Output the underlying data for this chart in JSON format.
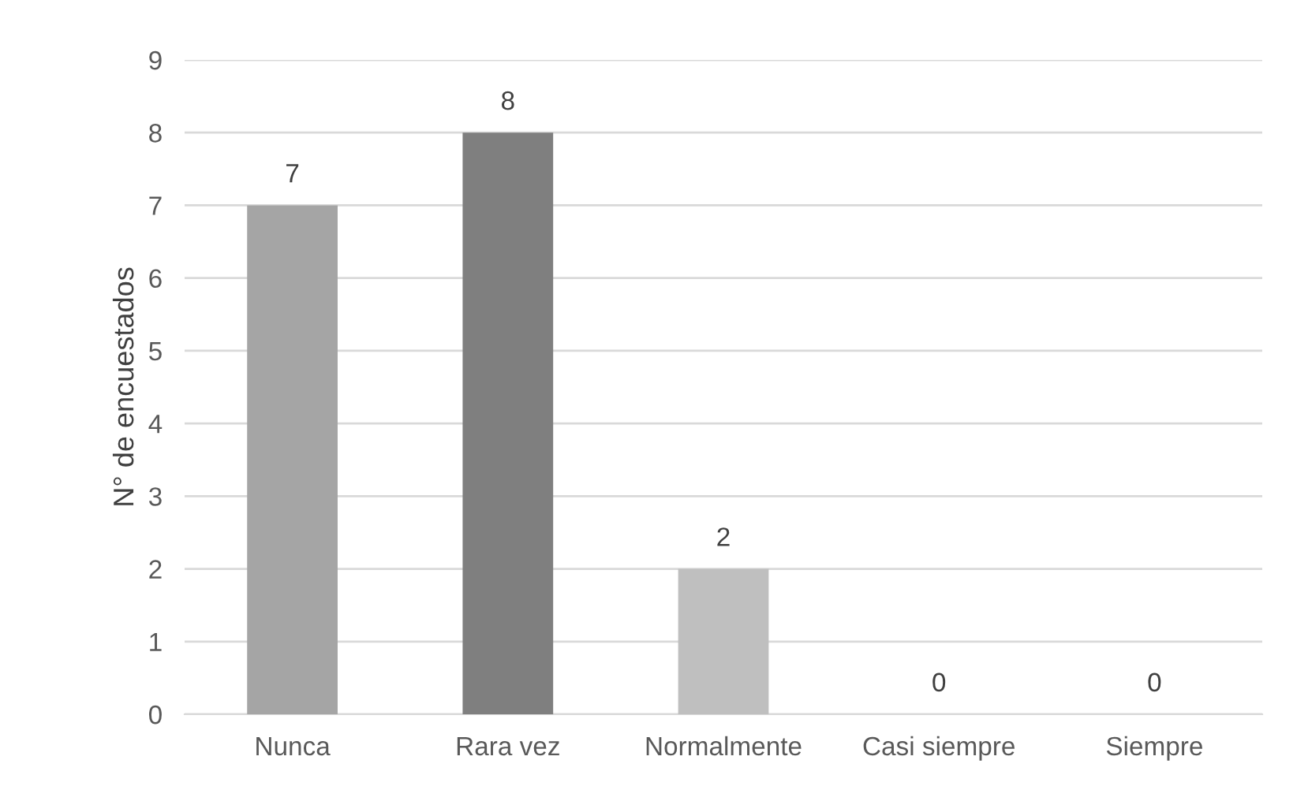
{
  "chart_data": {
    "type": "bar",
    "ylabel": "N° de encuestados",
    "categories": [
      "Nunca",
      "Rara vez",
      "Normalmente",
      "Casi siempre",
      "Siempre"
    ],
    "values": [
      7,
      8,
      2,
      0,
      0
    ],
    "colors": [
      "#a5a5a5",
      "#7f7f7f",
      "#bfbfbf",
      "#a5a5a5",
      "#a5a5a5"
    ],
    "ylim": [
      0,
      9
    ],
    "yticks": [
      0,
      1,
      2,
      3,
      4,
      5,
      6,
      7,
      8,
      9
    ],
    "grid": "y",
    "data_labels": true
  }
}
